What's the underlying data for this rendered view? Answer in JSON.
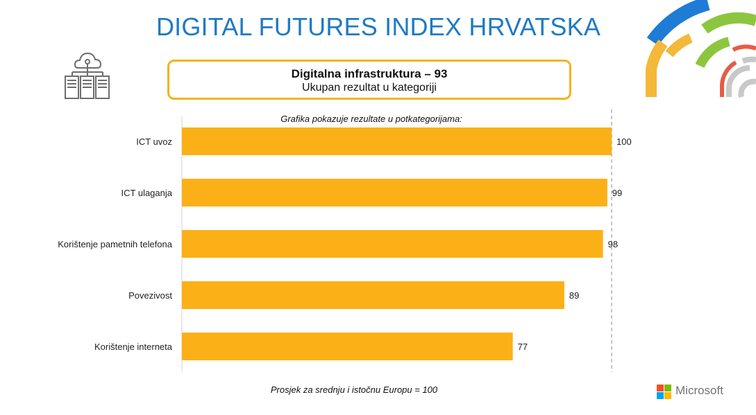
{
  "header": {
    "title": "DIGITAL FUTURES INDEX HRVATSKA"
  },
  "summary": {
    "headline": "Digitalna infrastruktura – 93",
    "caption": "Ukupan rezultat u kategoriji"
  },
  "chart_data": {
    "type": "bar",
    "orientation": "horizontal",
    "title": "Grafika pokazuje rezultate u potkategorijama:",
    "categories": [
      "ICT uvoz",
      "ICT ulaganja",
      "Korištenje pametnih telefona",
      "Povezivost",
      "Korištenje interneta"
    ],
    "values": [
      100,
      99,
      98,
      89,
      77
    ],
    "data_labels": [
      "100",
      "99",
      "98",
      "89",
      "77"
    ],
    "xlim": [
      0,
      100
    ],
    "reference_line": 100,
    "bar_color": "#fcb017",
    "grid": false
  },
  "footnote": "Prosjek za srednju i istočnu Europu = 100",
  "brand": {
    "name": "Microsoft",
    "colors": [
      "#f25022",
      "#7fba00",
      "#00a4ef",
      "#ffb900"
    ]
  },
  "icons": {
    "header_icon": "cloud-server-icon",
    "decoration": "concentric-arcs-decoration"
  }
}
